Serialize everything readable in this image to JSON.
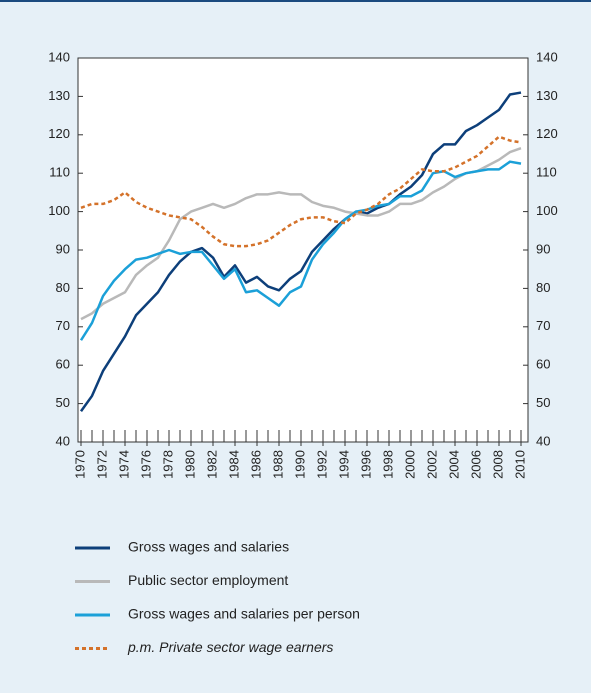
{
  "chart_data": {
    "type": "line",
    "x": [
      1970,
      1971,
      1972,
      1973,
      1974,
      1975,
      1976,
      1977,
      1978,
      1979,
      1980,
      1981,
      1982,
      1983,
      1984,
      1985,
      1986,
      1987,
      1988,
      1989,
      1990,
      1991,
      1992,
      1993,
      1994,
      1995,
      1996,
      1997,
      1998,
      1999,
      2000,
      2001,
      2002,
      2003,
      2004,
      2005,
      2006,
      2007,
      2008,
      2009,
      2010
    ],
    "series": [
      {
        "name": "Gross wages and salaries",
        "color": "#0d3f7a",
        "dashed": false,
        "italic": false,
        "values": [
          48,
          52,
          58.5,
          63,
          67.5,
          73,
          76,
          79,
          83.5,
          87,
          89.5,
          90.5,
          88,
          83,
          86,
          81.5,
          83,
          80.5,
          79.5,
          82.5,
          84.5,
          89.5,
          92.5,
          95.5,
          98,
          100,
          99.5,
          101,
          102,
          104.5,
          106.5,
          109.5,
          115,
          117.5,
          117.5,
          121,
          122.5,
          124.5,
          126.5,
          130.5,
          131
        ]
      },
      {
        "name": "Public sector employment",
        "color": "#b9b9b9",
        "dashed": false,
        "italic": false,
        "values": [
          72,
          73.5,
          76,
          77.5,
          79,
          83.5,
          86,
          88,
          92.5,
          98,
          100,
          101,
          102,
          101,
          102,
          103.5,
          104.5,
          104.5,
          105,
          104.5,
          104.5,
          102.5,
          101.5,
          101,
          100,
          99.5,
          99,
          99,
          100,
          102,
          102,
          103,
          105,
          106.5,
          108.5,
          110,
          110.5,
          112,
          113.5,
          115.5,
          116.5
        ]
      },
      {
        "name": "Gross wages and salaries per person",
        "color": "#1ba0d8",
        "dashed": false,
        "italic": false,
        "values": [
          66.5,
          71,
          78,
          82,
          85,
          87.5,
          88,
          89,
          90,
          89,
          89.5,
          89.5,
          86,
          82.5,
          85,
          79,
          79.5,
          77.5,
          75.5,
          79,
          80.5,
          87.5,
          91.5,
          94.5,
          98,
          100,
          100.5,
          101.5,
          102,
          104,
          104,
          105.5,
          110,
          110.5,
          109,
          110,
          110.5,
          111,
          111,
          113,
          112.5
        ]
      },
      {
        "name": "p.m. Private sector wage earners",
        "color": "#d4722a",
        "dashed": true,
        "italic": true,
        "values": [
          101,
          102,
          102,
          103,
          105,
          102.5,
          101,
          100,
          99,
          98.5,
          98,
          96,
          93.5,
          91.5,
          91,
          91,
          91.5,
          92.5,
          94.5,
          96.5,
          98,
          98.5,
          98.5,
          97.5,
          97,
          99.5,
          100.5,
          102,
          104.5,
          106,
          108.5,
          111,
          110.5,
          110.5,
          111.5,
          113,
          114.5,
          117,
          119.5,
          118.5,
          118
        ]
      }
    ],
    "xlim": [
      1970,
      2010
    ],
    "xticks": [
      1970,
      1972,
      1974,
      1976,
      1978,
      1980,
      1982,
      1984,
      1986,
      1988,
      1990,
      1992,
      1994,
      1996,
      1998,
      2000,
      2002,
      2004,
      2006,
      2008,
      2010
    ],
    "ylim": [
      40,
      140
    ],
    "yticks": [
      40,
      50,
      60,
      70,
      80,
      90,
      100,
      110,
      120,
      130,
      140
    ],
    "grid": false
  }
}
